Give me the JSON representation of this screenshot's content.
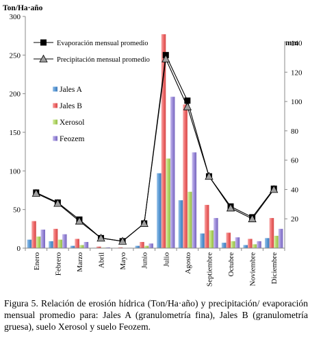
{
  "chart_data": {
    "type": "bar",
    "overlay_type": "line",
    "left_axis_title": "Ton/Ha·año",
    "right_axis_title": "mm",
    "categories": [
      "Enero",
      "Febrero",
      "Marzo",
      "Abril",
      "Mayo",
      "Junio",
      "Julio",
      "Agosto",
      "Septiembre",
      "Octubre",
      "Noviembre",
      "Diciembre"
    ],
    "y_left": {
      "min": 0,
      "max": 300,
      "ticks": [
        0,
        50,
        100,
        150,
        200,
        250,
        300
      ]
    },
    "y_right": {
      "min": 0,
      "max": 158,
      "ticks": [
        20,
        40,
        60,
        80,
        100,
        120,
        140
      ]
    },
    "bar_series": [
      {
        "name": "Jales A",
        "color": "#5b9bd5",
        "values": [
          11,
          9,
          3,
          0.5,
          0.3,
          3,
          97,
          62,
          19,
          7,
          4,
          13
        ]
      },
      {
        "name": "Jales B",
        "color": "#ef6b6b",
        "values": [
          35,
          25,
          12,
          2,
          1,
          8,
          277,
          186,
          56,
          20,
          12,
          39
        ]
      },
      {
        "name": "Xerosol",
        "color": "#b5d86b",
        "values": [
          15,
          11,
          4,
          0.6,
          0.4,
          3,
          116,
          73,
          23,
          9,
          5,
          16
        ]
      },
      {
        "name": "Feozem",
        "color": "#9b8bd8",
        "values": [
          24,
          18,
          8,
          1,
          0.5,
          6,
          196,
          124,
          39,
          14,
          9,
          25
        ]
      }
    ],
    "line_series": [
      {
        "name": "Evaporación mensual promedio",
        "marker": "square",
        "values": [
          72,
          59,
          37,
          13,
          9,
          32,
          250,
          191,
          93,
          54,
          40,
          77
        ]
      },
      {
        "name": "Precipitación mensual promedio",
        "marker": "triangle",
        "values": [
          71,
          58,
          35,
          13,
          9,
          32,
          245,
          183,
          93,
          52,
          38,
          76
        ]
      }
    ]
  },
  "caption": "Figura 5. Relación de erosión hídrica (Ton/Ha·año) y precipitación/ evaporación mensual promedio para: Jales A (granulometría fina), Jales B (granulometría gruesa), suelo Xerosol y suelo Feozem."
}
